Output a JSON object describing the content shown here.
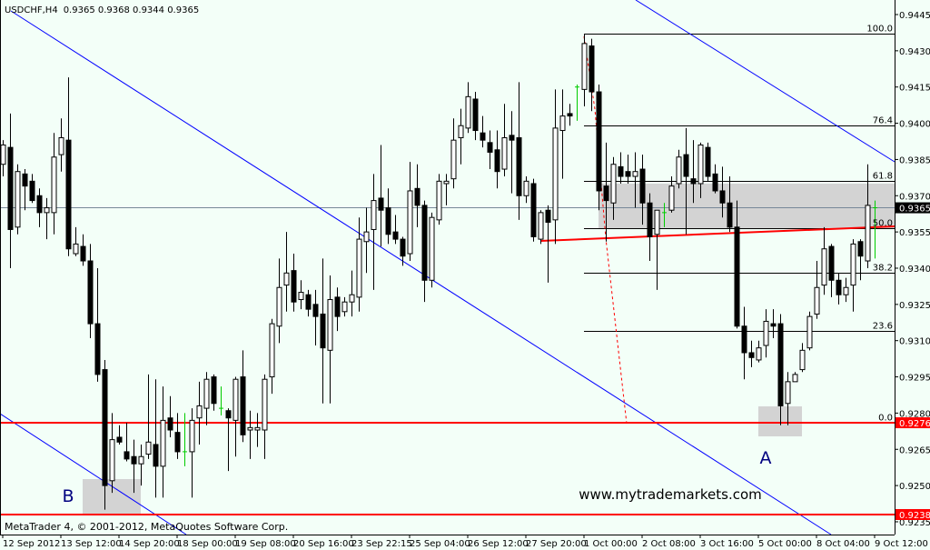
{
  "header": {
    "symbol": "USDCHF,H4",
    "ohlc": "0.9365 0.9368 0.9344 0.9365"
  },
  "footer": {
    "copyright": "MetaTrader 4, © 2001-2012, MetaQuotes Software Corp."
  },
  "watermark": "www.mytrademarkets.com",
  "annotations": {
    "label_a": "A",
    "label_b": "B"
  },
  "colors": {
    "background": "#f3fff8",
    "bull_body": "#ffffff",
    "bear_body": "#000000",
    "doji": "#00cc00",
    "trendline": "#0000ff",
    "support": "#ff0000",
    "zone": "#d3d3d3",
    "grid_price": "#778899"
  },
  "chart_data": {
    "type": "candlestick",
    "symbol": "USDCHF",
    "timeframe": "H4",
    "ylim": [
      0.9235,
      0.9445
    ],
    "y_ticks": [
      "0.9445",
      "0.9430",
      "0.9415",
      "0.9400",
      "0.9385",
      "0.9370",
      "0.9355",
      "0.9340",
      "0.9325",
      "0.9310",
      "0.9295",
      "0.9280",
      "0.9265",
      "0.9250",
      "0.9235"
    ],
    "x_ticks": [
      {
        "candle": 0,
        "label": "12 Sep 2012"
      },
      {
        "candle": 8,
        "label": "13 Sep 12:00"
      },
      {
        "candle": 16,
        "label": "14 Sep 20:00"
      },
      {
        "candle": 24,
        "label": "18 Sep 00:00"
      },
      {
        "candle": 32,
        "label": "19 Sep 08:00"
      },
      {
        "candle": 40,
        "label": "20 Sep 16:00"
      },
      {
        "candle": 48,
        "label": "23 Sep 22:15"
      },
      {
        "candle": 56,
        "label": "25 Sep 04:00"
      },
      {
        "candle": 64,
        "label": "26 Sep 12:00"
      },
      {
        "candle": 72,
        "label": "27 Sep 20:00"
      },
      {
        "candle": 80,
        "label": "1 Oct 00:00"
      },
      {
        "candle": 88,
        "label": "2 Oct 08:00"
      },
      {
        "candle": 96,
        "label": "3 Oct 16:00"
      },
      {
        "candle": 104,
        "label": "5 Oct 00:00"
      },
      {
        "candle": 112,
        "label": "8 Oct 04:00"
      },
      {
        "candle": 120,
        "label": "9 Oct 12:00"
      }
    ],
    "current_price": {
      "value": 0.9365,
      "label": "0.9365"
    },
    "horizontal_lines": [
      {
        "value": 0.9276,
        "label": "0.9276"
      },
      {
        "value": 0.9238,
        "label": "0.9238"
      }
    ],
    "fibonacci": [
      {
        "level": "100.0",
        "value": 0.9437
      },
      {
        "level": "76.4",
        "value": 0.9399
      },
      {
        "level": "61.8",
        "value": 0.9376
      },
      {
        "level": "50.0",
        "value": 0.93565
      },
      {
        "level": "38.2",
        "value": 0.9338
      },
      {
        "level": "23.6",
        "value": 0.9314
      },
      {
        "level": "0.0",
        "value": 0.9276
      }
    ],
    "ohlc": [
      [
        0.9383,
        0.9393,
        0.9378,
        0.9391
      ],
      [
        0.939,
        0.9404,
        0.934,
        0.9356
      ],
      [
        0.9357,
        0.9383,
        0.9354,
        0.938
      ],
      [
        0.9379,
        0.9381,
        0.9364,
        0.9374
      ],
      [
        0.9376,
        0.9379,
        0.9367,
        0.9368
      ],
      [
        0.937,
        0.9373,
        0.9357,
        0.9363
      ],
      [
        0.9363,
        0.9369,
        0.9352,
        0.9365
      ],
      [
        0.9363,
        0.9396,
        0.9354,
        0.9386
      ],
      [
        0.9387,
        0.9402,
        0.938,
        0.9394
      ],
      [
        0.9393,
        0.9419,
        0.9345,
        0.9348
      ],
      [
        0.9346,
        0.9357,
        0.9345,
        0.935
      ],
      [
        0.9349,
        0.9354,
        0.9341,
        0.9343
      ],
      [
        0.9343,
        0.935,
        0.9311,
        0.9317
      ],
      [
        0.9317,
        0.934,
        0.9293,
        0.9296
      ],
      [
        0.9298,
        0.9302,
        0.924,
        0.925
      ],
      [
        0.9252,
        0.928,
        0.9247,
        0.9269
      ],
      [
        0.927,
        0.9275,
        0.9267,
        0.9268
      ],
      [
        0.9264,
        0.9276,
        0.926,
        0.9261
      ],
      [
        0.9262,
        0.9269,
        0.9247,
        0.9259
      ],
      [
        0.9259,
        0.9267,
        0.925,
        0.9262
      ],
      [
        0.9263,
        0.9296,
        0.9261,
        0.9268
      ],
      [
        0.9267,
        0.9294,
        0.9245,
        0.9258
      ],
      [
        0.9258,
        0.9291,
        0.9245,
        0.9277
      ],
      [
        0.9278,
        0.9287,
        0.927,
        0.9273
      ],
      [
        0.9272,
        0.928,
        0.9261,
        0.9264
      ],
      [
        0.9264,
        0.928,
        0.9258,
        0.9264
      ],
      [
        0.9264,
        0.9282,
        0.9245,
        0.9277
      ],
      [
        0.9278,
        0.9293,
        0.9267,
        0.9283
      ],
      [
        0.9282,
        0.9297,
        0.9275,
        0.9294
      ],
      [
        0.9295,
        0.9296,
        0.9281,
        0.9284
      ],
      [
        0.9282,
        0.9291,
        0.9279,
        0.9282
      ],
      [
        0.9281,
        0.9282,
        0.9256,
        0.9278
      ],
      [
        0.9277,
        0.9295,
        0.9262,
        0.9294
      ],
      [
        0.9295,
        0.9306,
        0.9268,
        0.9271
      ],
      [
        0.9273,
        0.9281,
        0.9261,
        0.9274
      ],
      [
        0.9273,
        0.928,
        0.9266,
        0.9274
      ],
      [
        0.9273,
        0.9296,
        0.9261,
        0.9294
      ],
      [
        0.9295,
        0.9319,
        0.9288,
        0.9317
      ],
      [
        0.9316,
        0.9344,
        0.9309,
        0.9332
      ],
      [
        0.9333,
        0.9355,
        0.9322,
        0.9338
      ],
      [
        0.9339,
        0.9346,
        0.9322,
        0.9326
      ],
      [
        0.9327,
        0.9335,
        0.9323,
        0.933
      ],
      [
        0.9329,
        0.9331,
        0.932,
        0.9323
      ],
      [
        0.9325,
        0.9331,
        0.9308,
        0.932
      ],
      [
        0.9321,
        0.9344,
        0.9284,
        0.9307
      ],
      [
        0.9306,
        0.9337,
        0.9284,
        0.9327
      ],
      [
        0.9328,
        0.9332,
        0.9314,
        0.932
      ],
      [
        0.9322,
        0.9328,
        0.932,
        0.9326
      ],
      [
        0.9326,
        0.9339,
        0.932,
        0.9329
      ],
      [
        0.9328,
        0.9361,
        0.9322,
        0.9352
      ],
      [
        0.9351,
        0.9365,
        0.9338,
        0.9355
      ],
      [
        0.9356,
        0.9379,
        0.9331,
        0.9368
      ],
      [
        0.9369,
        0.9391,
        0.9349,
        0.9364
      ],
      [
        0.9365,
        0.9373,
        0.935,
        0.9354
      ],
      [
        0.9355,
        0.9362,
        0.935,
        0.9352
      ],
      [
        0.9352,
        0.9353,
        0.9341,
        0.9345
      ],
      [
        0.9346,
        0.9384,
        0.9343,
        0.9372
      ],
      [
        0.9373,
        0.9383,
        0.9357,
        0.9366
      ],
      [
        0.9366,
        0.9368,
        0.9326,
        0.9335
      ],
      [
        0.9335,
        0.9363,
        0.9332,
        0.9361
      ],
      [
        0.936,
        0.9379,
        0.9358,
        0.9376
      ],
      [
        0.9375,
        0.9379,
        0.9366,
        0.9376
      ],
      [
        0.9377,
        0.9402,
        0.9373,
        0.9393
      ],
      [
        0.9394,
        0.9406,
        0.9383,
        0.9399
      ],
      [
        0.9398,
        0.9417,
        0.9396,
        0.9411
      ],
      [
        0.941,
        0.9413,
        0.9393,
        0.9397
      ],
      [
        0.9396,
        0.9403,
        0.939,
        0.9393
      ],
      [
        0.9392,
        0.9397,
        0.9381,
        0.9388
      ],
      [
        0.9389,
        0.9397,
        0.9373,
        0.938
      ],
      [
        0.9381,
        0.9408,
        0.9378,
        0.9394
      ],
      [
        0.9395,
        0.9405,
        0.9371,
        0.9393
      ],
      [
        0.9394,
        0.9417,
        0.936,
        0.937
      ],
      [
        0.937,
        0.9378,
        0.9367,
        0.9376
      ],
      [
        0.9375,
        0.9377,
        0.9351,
        0.9353
      ],
      [
        0.9352,
        0.9364,
        0.935,
        0.9363
      ],
      [
        0.9364,
        0.9366,
        0.9334,
        0.9359
      ],
      [
        0.936,
        0.9414,
        0.935,
        0.9398
      ],
      [
        0.9397,
        0.9414,
        0.9377,
        0.9403
      ],
      [
        0.9404,
        0.9408,
        0.9399,
        0.9403
      ],
      [
        0.9415,
        0.9416,
        0.9401,
        0.9415
      ],
      [
        0.9414,
        0.9437,
        0.9407,
        0.9433
      ],
      [
        0.9432,
        0.9435,
        0.9405,
        0.9413
      ],
      [
        0.9413,
        0.9416,
        0.9364,
        0.9372
      ],
      [
        0.9374,
        0.9392,
        0.9351,
        0.9368
      ],
      [
        0.9367,
        0.9386,
        0.936,
        0.9383
      ],
      [
        0.9382,
        0.9388,
        0.9375,
        0.9378
      ],
      [
        0.938,
        0.9387,
        0.9375,
        0.9378
      ],
      [
        0.9378,
        0.9388,
        0.9365,
        0.938
      ],
      [
        0.9381,
        0.9387,
        0.9358,
        0.9367
      ],
      [
        0.9367,
        0.9371,
        0.9343,
        0.9353
      ],
      [
        0.9354,
        0.9364,
        0.9331,
        0.9364
      ],
      [
        0.9363,
        0.9367,
        0.9357,
        0.9363
      ],
      [
        0.9364,
        0.9378,
        0.9363,
        0.9374
      ],
      [
        0.9375,
        0.9389,
        0.9373,
        0.9386
      ],
      [
        0.9387,
        0.9398,
        0.9354,
        0.9378
      ],
      [
        0.9377,
        0.9393,
        0.9367,
        0.9375
      ],
      [
        0.9375,
        0.9392,
        0.9369,
        0.9391
      ],
      [
        0.939,
        0.9392,
        0.9376,
        0.9378
      ],
      [
        0.9379,
        0.9383,
        0.9371,
        0.9372
      ],
      [
        0.9372,
        0.9382,
        0.9361,
        0.9367
      ],
      [
        0.9367,
        0.9378,
        0.9355,
        0.9357
      ],
      [
        0.9357,
        0.9368,
        0.9315,
        0.9316
      ],
      [
        0.9316,
        0.9324,
        0.9294,
        0.9305
      ],
      [
        0.9305,
        0.931,
        0.9299,
        0.9303
      ],
      [
        0.9302,
        0.931,
        0.9301,
        0.9307
      ],
      [
        0.9308,
        0.9323,
        0.9303,
        0.9318
      ],
      [
        0.9317,
        0.9323,
        0.9311,
        0.9316
      ],
      [
        0.9317,
        0.9321,
        0.9275,
        0.9283
      ],
      [
        0.9284,
        0.9297,
        0.9275,
        0.9293
      ],
      [
        0.9293,
        0.9297,
        0.9293,
        0.9296
      ],
      [
        0.9298,
        0.9309,
        0.9297,
        0.9306
      ],
      [
        0.9307,
        0.9322,
        0.9306,
        0.932
      ],
      [
        0.9321,
        0.9343,
        0.9319,
        0.9332
      ],
      [
        0.9333,
        0.9357,
        0.9329,
        0.9348
      ],
      [
        0.9349,
        0.935,
        0.9328,
        0.9335
      ],
      [
        0.9335,
        0.9338,
        0.9325,
        0.9329
      ],
      [
        0.9329,
        0.9336,
        0.9326,
        0.9332
      ],
      [
        0.9333,
        0.9352,
        0.9322,
        0.935
      ],
      [
        0.9351,
        0.9352,
        0.9335,
        0.9345
      ],
      [
        0.9343,
        0.9383,
        0.934,
        0.9366
      ],
      [
        0.9365,
        0.9368,
        0.9344,
        0.9365
      ]
    ]
  }
}
